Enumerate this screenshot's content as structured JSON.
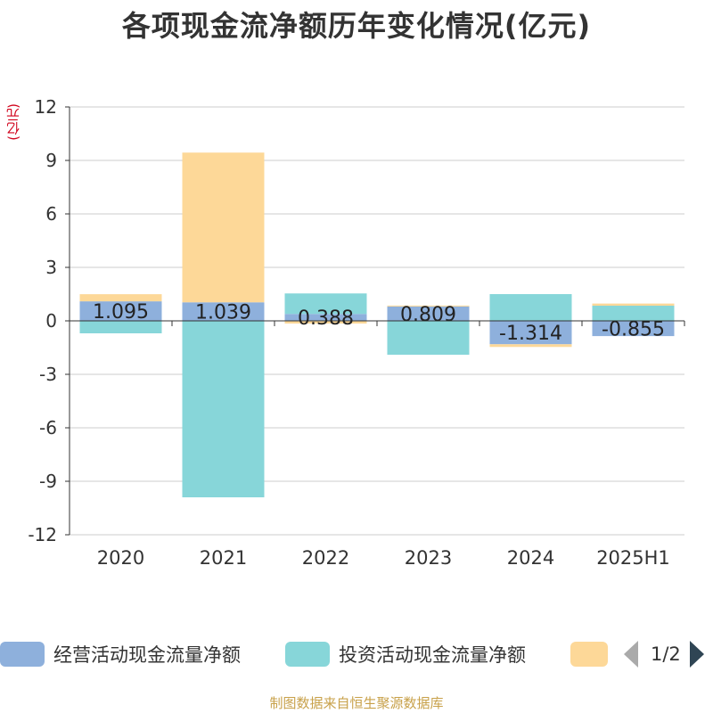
{
  "title": "各项现金流净额历年变化情况(亿元)",
  "unit_label": "(亿元)",
  "source": "制图数据来自恒生聚源数据库",
  "pager": {
    "text": "1/2",
    "prev_icon": "triangle-left-icon",
    "next_icon": "triangle-right-icon"
  },
  "colors": {
    "operating": "#8eb0dc",
    "investing": "#87d6d9",
    "financing": "#fdd898",
    "grid": "#cccccc",
    "axis": "#333333"
  },
  "chart_data": {
    "type": "bar",
    "stacked": true,
    "title": "各项现金流净额历年变化情况(亿元)",
    "ylabel": "(亿元)",
    "categories": [
      "2020",
      "2021",
      "2022",
      "2023",
      "2024",
      "2025H1"
    ],
    "ylim": [
      -12,
      12
    ],
    "yticks": [
      -12,
      -9,
      -6,
      -3,
      0,
      3,
      6,
      9,
      12
    ],
    "grid": true,
    "legend_position": "bottom",
    "series": [
      {
        "name": "经营活动现金流量净额",
        "values": [
          1.095,
          1.039,
          0.388,
          0.809,
          -1.314,
          -0.855
        ],
        "labels": [
          "1.095",
          "1.039",
          "0.388",
          "0.809",
          "-1.314",
          "-0.855"
        ]
      },
      {
        "name": "投资活动现金流量净额",
        "values": [
          -0.7,
          -9.9,
          1.15,
          -1.9,
          1.5,
          0.85
        ]
      },
      {
        "name": "",
        "values": [
          0.4,
          8.4,
          -0.15,
          0.05,
          -0.15,
          0.12
        ]
      }
    ]
  }
}
